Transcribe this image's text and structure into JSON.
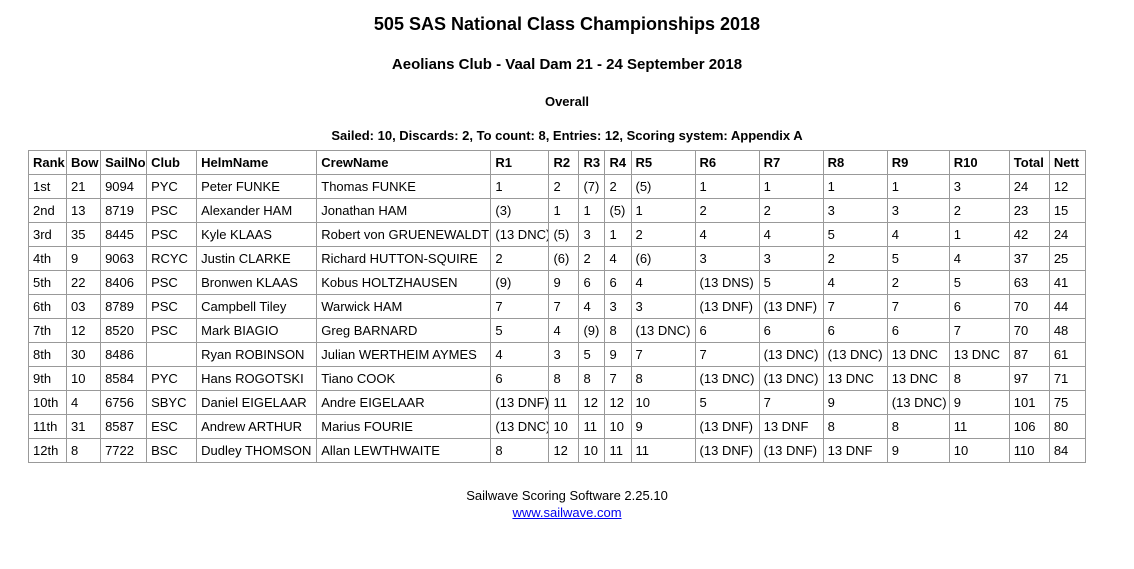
{
  "page": {
    "title": "505 SAS National Class Championships 2018",
    "subtitle": "Aeolians Club - Vaal Dam 21 - 24 September 2018",
    "section": "Overall",
    "summary": "Sailed: 10, Discards: 2, To count: 8, Entries: 12, Scoring system: Appendix A"
  },
  "table": {
    "columns": [
      "Rank",
      "Bow",
      "SailNo",
      "Club",
      "HelmName",
      "CrewName",
      "R1",
      "R2",
      "R3",
      "R4",
      "R5",
      "R6",
      "R7",
      "R8",
      "R9",
      "R10",
      "Total",
      "Nett"
    ],
    "rows": [
      [
        "1st",
        "21",
        "9094",
        "PYC",
        "Peter FUNKE",
        "Thomas FUNKE",
        "1",
        "2",
        "(7)",
        "2",
        "(5)",
        "1",
        "1",
        "1",
        "1",
        "3",
        "24",
        "12"
      ],
      [
        "2nd",
        "13",
        "8719",
        "PSC",
        "Alexander HAM",
        "Jonathan HAM",
        "(3)",
        "1",
        "1",
        "(5)",
        "1",
        "2",
        "2",
        "3",
        "3",
        "2",
        "23",
        "15"
      ],
      [
        "3rd",
        "35",
        "8445",
        "PSC",
        "Kyle KLAAS",
        "Robert von GRUENEWALDT",
        "(13 DNC)",
        "(5)",
        "3",
        "1",
        "2",
        "4",
        "4",
        "5",
        "4",
        "1",
        "42",
        "24"
      ],
      [
        "4th",
        "9",
        "9063",
        "RCYC",
        "Justin CLARKE",
        "Richard HUTTON-SQUIRE",
        "2",
        "(6)",
        "2",
        "4",
        "(6)",
        "3",
        "3",
        "2",
        "5",
        "4",
        "37",
        "25"
      ],
      [
        "5th",
        "22",
        "8406",
        "PSC",
        "Bronwen KLAAS",
        "Kobus HOLTZHAUSEN",
        "(9)",
        "9",
        "6",
        "6",
        "4",
        "(13 DNS)",
        "5",
        "4",
        "2",
        "5",
        "63",
        "41"
      ],
      [
        "6th",
        "03",
        "8789",
        "PSC",
        "Campbell Tiley",
        "Warwick HAM",
        "7",
        "7",
        "4",
        "3",
        "3",
        "(13 DNF)",
        "(13 DNF)",
        "7",
        "7",
        "6",
        "70",
        "44"
      ],
      [
        "7th",
        "12",
        "8520",
        "PSC",
        "Mark BIAGIO",
        "Greg BARNARD",
        "5",
        "4",
        "(9)",
        "8",
        "(13 DNC)",
        "6",
        "6",
        "6",
        "6",
        "7",
        "70",
        "48"
      ],
      [
        "8th",
        "30",
        "8486",
        "",
        "Ryan ROBINSON",
        "Julian WERTHEIM AYMES",
        "4",
        "3",
        "5",
        "9",
        "7",
        "7",
        "(13 DNC)",
        "(13 DNC)",
        "13 DNC",
        "13 DNC",
        "87",
        "61"
      ],
      [
        "9th",
        "10",
        "8584",
        "PYC",
        "Hans ROGOTSKI",
        "Tiano COOK",
        "6",
        "8",
        "8",
        "7",
        "8",
        "(13 DNC)",
        "(13 DNC)",
        "13 DNC",
        "13 DNC",
        "8",
        "97",
        "71"
      ],
      [
        "10th",
        "4",
        "6756",
        "SBYC",
        "Daniel EIGELAAR",
        "Andre EIGELAAR",
        "(13 DNF)",
        "11",
        "12",
        "12",
        "10",
        "5",
        "7",
        "9",
        "(13 DNC)",
        "9",
        "101",
        "75"
      ],
      [
        "11th",
        "31",
        "8587",
        "ESC",
        "Andrew ARTHUR",
        "Marius FOURIE",
        "(13 DNC)",
        "10",
        "11",
        "10",
        "9",
        "(13 DNF)",
        "13 DNF",
        "8",
        "8",
        "11",
        "106",
        "80"
      ],
      [
        "12th",
        "8",
        "7722",
        "BSC",
        "Dudley THOMSON",
        "Allan LEWTHWAITE",
        "8",
        "12",
        "10",
        "11",
        "11",
        "(13 DNF)",
        "(13 DNF)",
        "13 DNF",
        "9",
        "10",
        "110",
        "84"
      ]
    ]
  },
  "footer": {
    "software": "Sailwave Scoring Software 2.25.10",
    "link": "www.sailwave.com"
  },
  "colors": {
    "link": "#0000ee",
    "border": "#999999",
    "text": "#000000"
  }
}
